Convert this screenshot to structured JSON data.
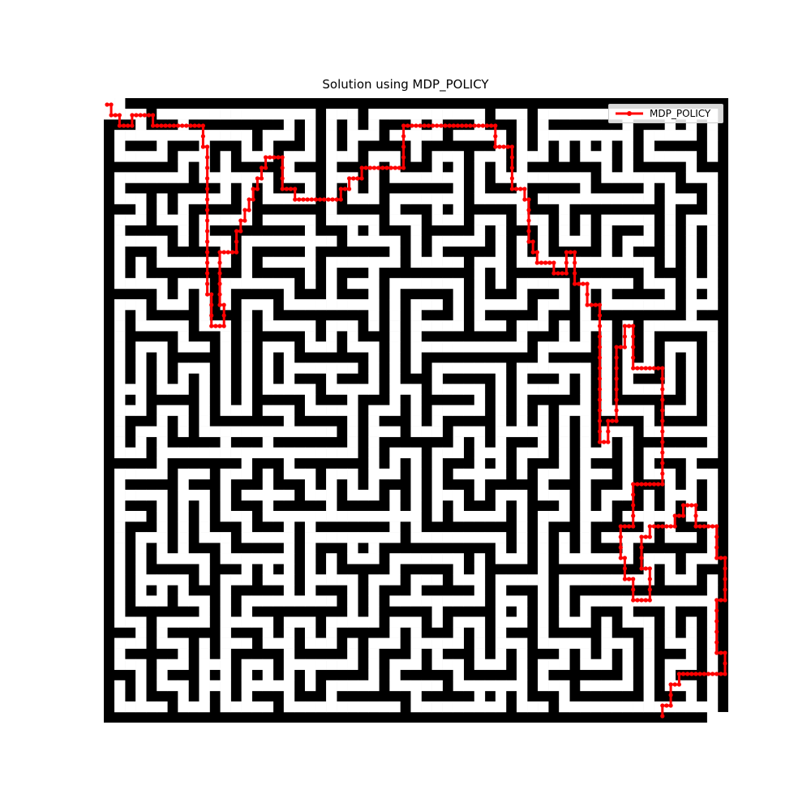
{
  "title": "Solution using MDP_POLICY",
  "legend": {
    "label": "MDP_POLICY"
  },
  "colors": {
    "wall": "#000000",
    "open": "#ffffff",
    "path": "#ff0000"
  },
  "chart_data": {
    "type": "maze-path",
    "grid": {
      "rows": 59,
      "cols": 59
    },
    "series": [
      {
        "name": "MDP_POLICY",
        "points": [
          [
            0,
            0
          ],
          [
            1,
            0
          ],
          [
            1,
            1
          ],
          [
            2,
            1
          ],
          [
            3,
            1
          ],
          [
            3,
            2
          ],
          [
            4,
            2
          ],
          [
            5,
            2
          ],
          [
            6,
            2
          ],
          [
            6,
            1
          ],
          [
            7,
            1
          ],
          [
            8,
            1
          ],
          [
            9,
            1
          ],
          [
            10,
            1
          ],
          [
            11,
            1
          ],
          [
            11,
            2
          ],
          [
            12,
            2
          ],
          [
            13,
            2
          ],
          [
            14,
            2
          ],
          [
            15,
            2
          ],
          [
            16,
            2
          ],
          [
            17,
            2
          ],
          [
            18,
            2
          ],
          [
            19,
            2
          ],
          [
            20,
            2
          ],
          [
            21,
            2
          ],
          [
            22,
            2
          ],
          [
            23,
            2
          ],
          [
            23,
            3
          ],
          [
            23,
            4
          ],
          [
            24,
            4
          ],
          [
            24,
            5
          ],
          [
            24,
            6
          ],
          [
            24,
            7
          ],
          [
            24,
            8
          ],
          [
            24,
            9
          ],
          [
            24,
            10
          ],
          [
            24,
            11
          ],
          [
            24,
            12
          ],
          [
            24,
            13
          ],
          [
            24,
            14
          ],
          [
            24,
            15
          ],
          [
            24,
            16
          ],
          [
            24,
            17
          ],
          [
            24,
            18
          ],
          [
            25,
            18
          ],
          [
            25,
            19
          ],
          [
            25,
            20
          ],
          [
            25,
            21
          ],
          [
            26,
            21
          ],
          [
            27,
            21
          ],
          [
            28,
            21
          ],
          [
            28,
            20
          ],
          [
            28,
            19
          ],
          [
            27,
            19
          ],
          [
            27,
            18
          ],
          [
            27,
            17
          ],
          [
            27,
            16
          ],
          [
            27,
            15
          ],
          [
            27,
            14
          ],
          [
            28,
            14
          ],
          [
            29,
            14
          ],
          [
            30,
            14
          ],
          [
            31,
            14
          ],
          [
            31,
            13
          ],
          [
            31,
            12
          ],
          [
            32,
            12
          ],
          [
            32,
            11
          ],
          [
            33,
            11
          ],
          [
            33,
            10
          ],
          [
            34,
            10
          ],
          [
            34,
            9
          ],
          [
            35,
            9
          ],
          [
            35,
            8
          ],
          [
            36,
            8
          ],
          [
            36,
            7
          ],
          [
            37,
            7
          ],
          [
            37,
            6
          ],
          [
            38,
            6
          ],
          [
            38,
            5
          ],
          [
            39,
            5
          ],
          [
            40,
            5
          ],
          [
            41,
            5
          ],
          [
            42,
            5
          ],
          [
            42,
            6
          ],
          [
            42,
            7
          ],
          [
            42,
            8
          ],
          [
            43,
            8
          ],
          [
            44,
            8
          ],
          [
            45,
            8
          ],
          [
            45,
            9
          ],
          [
            46,
            9
          ],
          [
            47,
            9
          ],
          [
            48,
            9
          ],
          [
            49,
            9
          ],
          [
            50,
            9
          ],
          [
            51,
            9
          ],
          [
            52,
            9
          ],
          [
            53,
            9
          ],
          [
            54,
            9
          ],
          [
            55,
            9
          ],
          [
            56,
            9
          ],
          [
            56,
            8
          ],
          [
            57,
            8
          ],
          [
            58,
            8
          ],
          [
            58,
            7
          ],
          [
            59,
            7
          ],
          [
            60,
            7
          ],
          [
            61,
            7
          ],
          [
            61,
            6
          ],
          [
            62,
            6
          ],
          [
            63,
            6
          ],
          [
            64,
            6
          ],
          [
            65,
            6
          ],
          [
            66,
            6
          ],
          [
            67,
            6
          ],
          [
            68,
            6
          ],
          [
            69,
            6
          ],
          [
            70,
            6
          ],
          [
            71,
            6
          ],
          [
            71,
            5
          ],
          [
            71,
            4
          ],
          [
            71,
            3
          ],
          [
            71,
            2
          ],
          [
            72,
            2
          ],
          [
            73,
            2
          ],
          [
            74,
            2
          ],
          [
            75,
            2
          ],
          [
            76,
            2
          ],
          [
            77,
            2
          ],
          [
            78,
            2
          ],
          [
            79,
            2
          ],
          [
            80,
            2
          ],
          [
            81,
            2
          ],
          [
            82,
            2
          ],
          [
            83,
            2
          ],
          [
            84,
            2
          ],
          [
            85,
            2
          ],
          [
            86,
            2
          ],
          [
            87,
            2
          ],
          [
            88,
            2
          ],
          [
            89,
            2
          ],
          [
            90,
            2
          ],
          [
            91,
            2
          ],
          [
            92,
            2
          ],
          [
            93,
            2
          ],
          [
            93,
            3
          ],
          [
            93,
            4
          ],
          [
            94,
            4
          ],
          [
            95,
            4
          ],
          [
            96,
            4
          ],
          [
            97,
            4
          ],
          [
            97,
            5
          ],
          [
            97,
            6
          ],
          [
            97,
            7
          ],
          [
            97,
            8
          ],
          [
            98,
            8
          ],
          [
            99,
            8
          ],
          [
            100,
            8
          ],
          [
            100,
            9
          ],
          [
            101,
            9
          ],
          [
            101,
            10
          ],
          [
            101,
            11
          ],
          [
            101,
            12
          ],
          [
            101,
            13
          ],
          [
            102,
            13
          ],
          [
            102,
            14
          ],
          [
            103,
            14
          ],
          [
            103,
            15
          ],
          [
            104,
            15
          ],
          [
            105,
            15
          ],
          [
            106,
            15
          ],
          [
            107,
            15
          ],
          [
            107,
            16
          ],
          [
            108,
            16
          ],
          [
            109,
            16
          ],
          [
            110,
            16
          ],
          [
            110,
            15
          ],
          [
            110,
            14
          ],
          [
            111,
            14
          ],
          [
            112,
            14
          ],
          [
            112,
            15
          ],
          [
            112,
            16
          ],
          [
            112,
            17
          ],
          [
            113,
            17
          ],
          [
            114,
            17
          ],
          [
            115,
            17
          ],
          [
            115,
            18
          ],
          [
            115,
            19
          ],
          [
            116,
            19
          ],
          [
            117,
            19
          ],
          [
            118,
            19
          ],
          [
            118,
            20
          ],
          [
            118,
            21
          ],
          [
            118,
            22
          ],
          [
            118,
            23
          ],
          [
            118,
            24
          ],
          [
            118,
            25
          ],
          [
            118,
            26
          ],
          [
            118,
            27
          ],
          [
            118,
            28
          ],
          [
            118,
            29
          ],
          [
            118,
            30
          ],
          [
            118,
            31
          ],
          [
            118,
            32
          ],
          [
            119,
            32
          ],
          [
            120,
            32
          ],
          [
            120,
            31
          ],
          [
            120,
            30
          ],
          [
            121,
            30
          ],
          [
            122,
            30
          ],
          [
            122,
            29
          ],
          [
            122,
            28
          ],
          [
            122,
            27
          ],
          [
            122,
            26
          ],
          [
            122,
            25
          ],
          [
            122,
            24
          ],
          [
            122,
            23
          ],
          [
            123,
            23
          ],
          [
            124,
            23
          ],
          [
            124,
            22
          ],
          [
            124,
            21
          ],
          [
            125,
            21
          ],
          [
            126,
            21
          ],
          [
            126,
            22
          ],
          [
            126,
            23
          ],
          [
            126,
            24
          ],
          [
            126,
            25
          ],
          [
            127,
            25
          ],
          [
            128,
            25
          ],
          [
            129,
            25
          ],
          [
            130,
            25
          ],
          [
            131,
            25
          ],
          [
            132,
            25
          ],
          [
            133,
            25
          ],
          [
            133,
            26
          ],
          [
            133,
            27
          ],
          [
            133,
            28
          ],
          [
            133,
            29
          ],
          [
            133,
            30
          ],
          [
            133,
            31
          ],
          [
            133,
            32
          ],
          [
            133,
            33
          ],
          [
            133,
            34
          ],
          [
            133,
            35
          ],
          [
            133,
            36
          ],
          [
            132,
            36
          ],
          [
            131,
            36
          ],
          [
            130,
            36
          ],
          [
            129,
            36
          ],
          [
            128,
            36
          ],
          [
            127,
            36
          ],
          [
            126,
            36
          ],
          [
            126,
            37
          ],
          [
            126,
            38
          ],
          [
            126,
            39
          ],
          [
            126,
            40
          ],
          [
            125,
            40
          ],
          [
            124,
            40
          ],
          [
            123,
            40
          ],
          [
            123,
            41
          ],
          [
            123,
            42
          ],
          [
            123,
            43
          ],
          [
            124,
            43
          ],
          [
            124,
            44
          ],
          [
            124,
            45
          ],
          [
            125,
            45
          ],
          [
            126,
            45
          ],
          [
            126,
            46
          ],
          [
            126,
            47
          ],
          [
            127,
            47
          ],
          [
            128,
            47
          ],
          [
            129,
            47
          ],
          [
            130,
            47
          ],
          [
            130,
            46
          ],
          [
            130,
            45
          ],
          [
            130,
            44
          ],
          [
            129,
            44
          ],
          [
            128,
            44
          ],
          [
            128,
            43
          ],
          [
            128,
            42
          ],
          [
            128,
            41
          ],
          [
            129,
            41
          ],
          [
            130,
            41
          ],
          [
            130,
            40
          ],
          [
            131,
            40
          ],
          [
            132,
            40
          ],
          [
            133,
            40
          ],
          [
            134,
            40
          ],
          [
            135,
            40
          ],
          [
            136,
            40
          ],
          [
            136,
            39
          ],
          [
            137,
            39
          ],
          [
            138,
            39
          ],
          [
            138,
            38
          ],
          [
            139,
            38
          ],
          [
            140,
            38
          ],
          [
            141,
            38
          ],
          [
            141,
            39
          ],
          [
            141,
            40
          ],
          [
            142,
            40
          ],
          [
            143,
            40
          ],
          [
            144,
            40
          ],
          [
            145,
            40
          ],
          [
            146,
            40
          ],
          [
            146,
            41
          ],
          [
            146,
            42
          ],
          [
            146,
            43
          ],
          [
            147,
            43
          ],
          [
            148,
            43
          ],
          [
            148,
            44
          ],
          [
            148,
            45
          ],
          [
            148,
            46
          ],
          [
            148,
            47
          ],
          [
            147,
            47
          ],
          [
            146,
            47
          ],
          [
            146,
            48
          ],
          [
            146,
            49
          ],
          [
            146,
            50
          ],
          [
            146,
            51
          ],
          [
            146,
            52
          ],
          [
            147,
            52
          ],
          [
            148,
            52
          ],
          [
            148,
            53
          ],
          [
            148,
            54
          ],
          [
            147,
            54
          ],
          [
            146,
            54
          ],
          [
            145,
            54
          ],
          [
            144,
            54
          ],
          [
            143,
            54
          ],
          [
            142,
            54
          ],
          [
            141,
            54
          ],
          [
            140,
            54
          ],
          [
            139,
            54
          ],
          [
            138,
            54
          ],
          [
            137,
            54
          ],
          [
            137,
            55
          ],
          [
            136,
            55
          ],
          [
            135,
            55
          ],
          [
            135,
            56
          ],
          [
            135,
            57
          ],
          [
            134,
            57
          ],
          [
            133,
            57
          ],
          [
            133,
            58
          ]
        ]
      }
    ]
  }
}
